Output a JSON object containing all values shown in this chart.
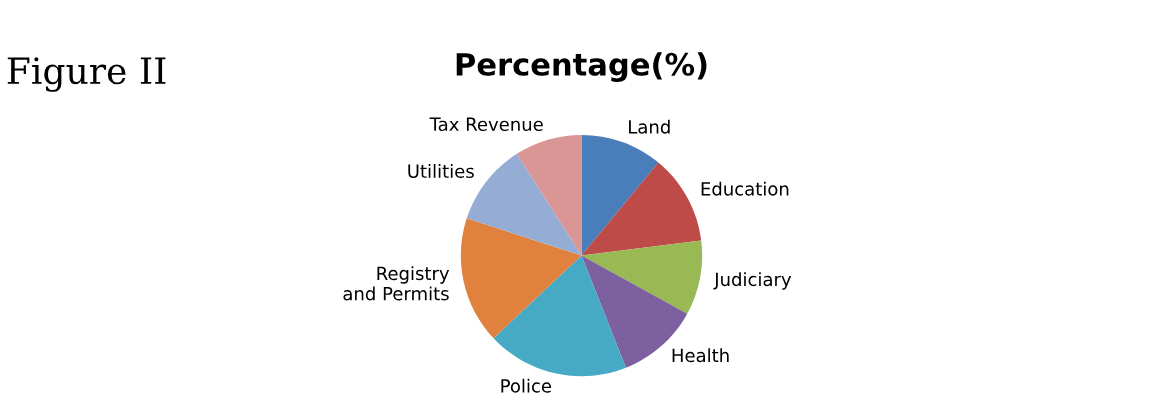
{
  "chart_data": {
    "type": "pie",
    "title": "Percentage(%)",
    "annotations": [
      "Figure II"
    ],
    "categories": [
      "Land",
      "Education",
      "Judiciary",
      "Health",
      "Police",
      "Registry\nand Permits",
      "Utilities",
      "Tax Revenue"
    ],
    "values": [
      11,
      12,
      10,
      11,
      19,
      17,
      11,
      9
    ],
    "colors": [
      "#4a7ebb",
      "#be4b48",
      "#98b954",
      "#7d60a0",
      "#46aac5",
      "#e0823d",
      "#95acd4",
      "#d99694"
    ],
    "legend": false
  }
}
